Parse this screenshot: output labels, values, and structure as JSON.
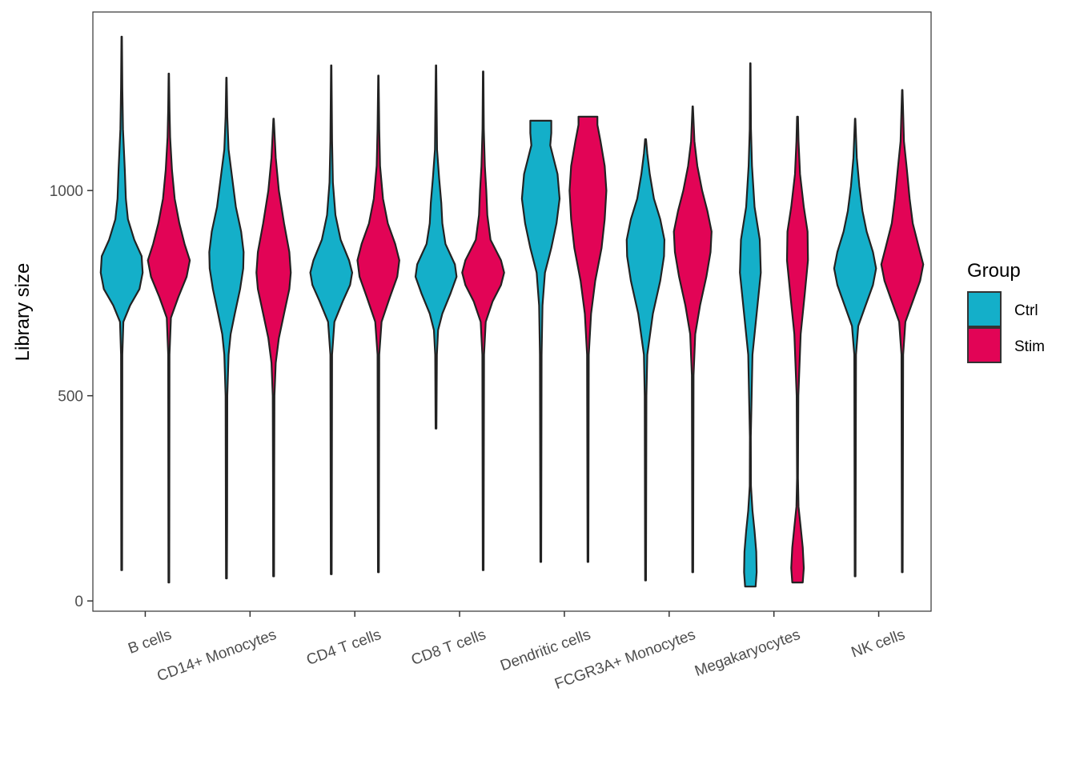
{
  "chart_data": {
    "type": "violin",
    "ylabel": "Library size",
    "xlabel": "",
    "ylim": [
      -25,
      1435
    ],
    "yticks": [
      0,
      500,
      1000
    ],
    "grid": false,
    "legend": {
      "title": "Group",
      "position": "right",
      "entries": [
        {
          "name": "Ctrl",
          "color": "#14afc9"
        },
        {
          "name": "Stim",
          "color": "#e20456"
        }
      ]
    },
    "categories": [
      "B cells",
      "CD14+ Monocytes",
      "CD4 T cells",
      "CD8 T cells",
      "Dendritic cells",
      "FCGR3A+ Monocytes",
      "Megakaryocytes",
      "NK cells"
    ],
    "series": [
      {
        "name": "Ctrl",
        "color": "#14afc9",
        "violins": [
          {
            "min": 75,
            "max": 1375,
            "profile": [
              [
                75,
                0.02
              ],
              [
                600,
                0.03
              ],
              [
                680,
                0.08
              ],
              [
                720,
                0.4
              ],
              [
                760,
                0.85
              ],
              [
                800,
                1.0
              ],
              [
                840,
                0.95
              ],
              [
                880,
                0.6
              ],
              [
                930,
                0.3
              ],
              [
                980,
                0.2
              ],
              [
                1050,
                0.15
              ],
              [
                1150,
                0.06
              ],
              [
                1250,
                0.03
              ],
              [
                1375,
                0.01
              ]
            ]
          },
          {
            "min": 55,
            "max": 1275,
            "profile": [
              [
                55,
                0.02
              ],
              [
                200,
                0.03
              ],
              [
                500,
                0.04
              ],
              [
                600,
                0.1
              ],
              [
                650,
                0.2
              ],
              [
                700,
                0.4
              ],
              [
                760,
                0.65
              ],
              [
                810,
                0.8
              ],
              [
                850,
                0.82
              ],
              [
                900,
                0.7
              ],
              [
                960,
                0.45
              ],
              [
                1040,
                0.25
              ],
              [
                1100,
                0.1
              ],
              [
                1180,
                0.04
              ],
              [
                1275,
                0.01
              ]
            ]
          },
          {
            "min": 65,
            "max": 1305,
            "profile": [
              [
                65,
                0.02
              ],
              [
                600,
                0.04
              ],
              [
                680,
                0.15
              ],
              [
                730,
                0.55
              ],
              [
                770,
                0.9
              ],
              [
                800,
                1.0
              ],
              [
                830,
                0.85
              ],
              [
                880,
                0.45
              ],
              [
                940,
                0.2
              ],
              [
                1020,
                0.08
              ],
              [
                1120,
                0.04
              ],
              [
                1305,
                0.01
              ]
            ]
          },
          {
            "min": 420,
            "max": 1305,
            "profile": [
              [
                420,
                0.02
              ],
              [
                600,
                0.04
              ],
              [
                660,
                0.1
              ],
              [
                700,
                0.3
              ],
              [
                750,
                0.7
              ],
              [
                790,
                0.98
              ],
              [
                820,
                0.9
              ],
              [
                870,
                0.45
              ],
              [
                920,
                0.3
              ],
              [
                970,
                0.25
              ],
              [
                1030,
                0.15
              ],
              [
                1100,
                0.05
              ],
              [
                1200,
                0.03
              ],
              [
                1305,
                0.01
              ]
            ]
          },
          {
            "min": 95,
            "max": 1170,
            "profile": [
              [
                95,
                0.02
              ],
              [
                600,
                0.04
              ],
              [
                720,
                0.08
              ],
              [
                800,
                0.2
              ],
              [
                860,
                0.5
              ],
              [
                920,
                0.75
              ],
              [
                980,
                0.9
              ],
              [
                1040,
                0.8
              ],
              [
                1080,
                0.6
              ],
              [
                1110,
                0.45
              ],
              [
                1140,
                0.5
              ],
              [
                1170,
                0.5
              ]
            ]
          },
          {
            "min": 50,
            "max": 1125,
            "profile": [
              [
                50,
                0.02
              ],
              [
                500,
                0.04
              ],
              [
                600,
                0.08
              ],
              [
                700,
                0.35
              ],
              [
                780,
                0.7
              ],
              [
                840,
                0.88
              ],
              [
                880,
                0.9
              ],
              [
                930,
                0.7
              ],
              [
                980,
                0.4
              ],
              [
                1040,
                0.2
              ],
              [
                1090,
                0.08
              ],
              [
                1125,
                0.02
              ]
            ]
          },
          {
            "min": 35,
            "max": 1310,
            "profile": [
              [
                35,
                0.25
              ],
              [
                70,
                0.3
              ],
              [
                120,
                0.28
              ],
              [
                170,
                0.2
              ],
              [
                220,
                0.1
              ],
              [
                280,
                0.03
              ],
              [
                400,
                0.02
              ],
              [
                600,
                0.1
              ],
              [
                700,
                0.3
              ],
              [
                800,
                0.5
              ],
              [
                880,
                0.45
              ],
              [
                960,
                0.2
              ],
              [
                1060,
                0.08
              ],
              [
                1150,
                0.03
              ],
              [
                1310,
                0.01
              ]
            ]
          },
          {
            "min": 60,
            "max": 1175,
            "profile": [
              [
                60,
                0.02
              ],
              [
                600,
                0.04
              ],
              [
                670,
                0.15
              ],
              [
                720,
                0.5
              ],
              [
                770,
                0.85
              ],
              [
                810,
                1.0
              ],
              [
                850,
                0.85
              ],
              [
                900,
                0.55
              ],
              [
                950,
                0.35
              ],
              [
                1010,
                0.2
              ],
              [
                1080,
                0.08
              ],
              [
                1175,
                0.01
              ]
            ]
          }
        ]
      },
      {
        "name": "Stim",
        "color": "#e20456",
        "violins": [
          {
            "min": 45,
            "max": 1285,
            "profile": [
              [
                45,
                0.02
              ],
              [
                600,
                0.03
              ],
              [
                690,
                0.1
              ],
              [
                740,
                0.45
              ],
              [
                790,
                0.85
              ],
              [
                830,
                1.0
              ],
              [
                870,
                0.75
              ],
              [
                920,
                0.5
              ],
              [
                980,
                0.28
              ],
              [
                1050,
                0.15
              ],
              [
                1130,
                0.06
              ],
              [
                1200,
                0.03
              ],
              [
                1285,
                0.01
              ]
            ]
          },
          {
            "min": 60,
            "max": 1175,
            "profile": [
              [
                60,
                0.02
              ],
              [
                300,
                0.03
              ],
              [
                500,
                0.04
              ],
              [
                580,
                0.1
              ],
              [
                640,
                0.25
              ],
              [
                700,
                0.5
              ],
              [
                760,
                0.75
              ],
              [
                800,
                0.82
              ],
              [
                850,
                0.75
              ],
              [
                920,
                0.5
              ],
              [
                1000,
                0.25
              ],
              [
                1080,
                0.1
              ],
              [
                1175,
                0.01
              ]
            ]
          },
          {
            "min": 70,
            "max": 1280,
            "profile": [
              [
                70,
                0.02
              ],
              [
                600,
                0.04
              ],
              [
                680,
                0.15
              ],
              [
                740,
                0.55
              ],
              [
                790,
                0.9
              ],
              [
                830,
                1.0
              ],
              [
                870,
                0.8
              ],
              [
                920,
                0.45
              ],
              [
                980,
                0.22
              ],
              [
                1060,
                0.08
              ],
              [
                1150,
                0.04
              ],
              [
                1280,
                0.01
              ]
            ]
          },
          {
            "min": 75,
            "max": 1290,
            "profile": [
              [
                75,
                0.02
              ],
              [
                600,
                0.04
              ],
              [
                680,
                0.12
              ],
              [
                730,
                0.45
              ],
              [
                770,
                0.85
              ],
              [
                800,
                1.0
              ],
              [
                830,
                0.85
              ],
              [
                880,
                0.35
              ],
              [
                940,
                0.2
              ],
              [
                1000,
                0.15
              ],
              [
                1060,
                0.08
              ],
              [
                1150,
                0.03
              ],
              [
                1290,
                0.01
              ]
            ]
          },
          {
            "min": 95,
            "max": 1180,
            "profile": [
              [
                95,
                0.02
              ],
              [
                600,
                0.04
              ],
              [
                700,
                0.15
              ],
              [
                780,
                0.35
              ],
              [
                860,
                0.65
              ],
              [
                930,
                0.8
              ],
              [
                1000,
                0.88
              ],
              [
                1060,
                0.8
              ],
              [
                1120,
                0.6
              ],
              [
                1160,
                0.45
              ],
              [
                1180,
                0.45
              ]
            ]
          },
          {
            "min": 70,
            "max": 1205,
            "profile": [
              [
                70,
                0.02
              ],
              [
                550,
                0.04
              ],
              [
                650,
                0.12
              ],
              [
                720,
                0.35
              ],
              [
                790,
                0.65
              ],
              [
                850,
                0.85
              ],
              [
                900,
                0.9
              ],
              [
                950,
                0.7
              ],
              [
                1000,
                0.45
              ],
              [
                1060,
                0.22
              ],
              [
                1120,
                0.08
              ],
              [
                1205,
                0.01
              ]
            ]
          },
          {
            "min": 45,
            "max": 1180,
            "profile": [
              [
                45,
                0.25
              ],
              [
                80,
                0.3
              ],
              [
                130,
                0.25
              ],
              [
                180,
                0.15
              ],
              [
                230,
                0.05
              ],
              [
                300,
                0.02
              ],
              [
                500,
                0.04
              ],
              [
                650,
                0.15
              ],
              [
                750,
                0.35
              ],
              [
                830,
                0.5
              ],
              [
                900,
                0.48
              ],
              [
                960,
                0.3
              ],
              [
                1040,
                0.12
              ],
              [
                1120,
                0.05
              ],
              [
                1180,
                0.02
              ]
            ]
          },
          {
            "min": 70,
            "max": 1245,
            "profile": [
              [
                70,
                0.02
              ],
              [
                600,
                0.04
              ],
              [
                680,
                0.15
              ],
              [
                730,
                0.5
              ],
              [
                780,
                0.85
              ],
              [
                820,
                1.0
              ],
              [
                860,
                0.8
              ],
              [
                920,
                0.5
              ],
              [
                980,
                0.35
              ],
              [
                1050,
                0.22
              ],
              [
                1120,
                0.08
              ],
              [
                1245,
                0.01
              ]
            ]
          }
        ]
      }
    ]
  }
}
